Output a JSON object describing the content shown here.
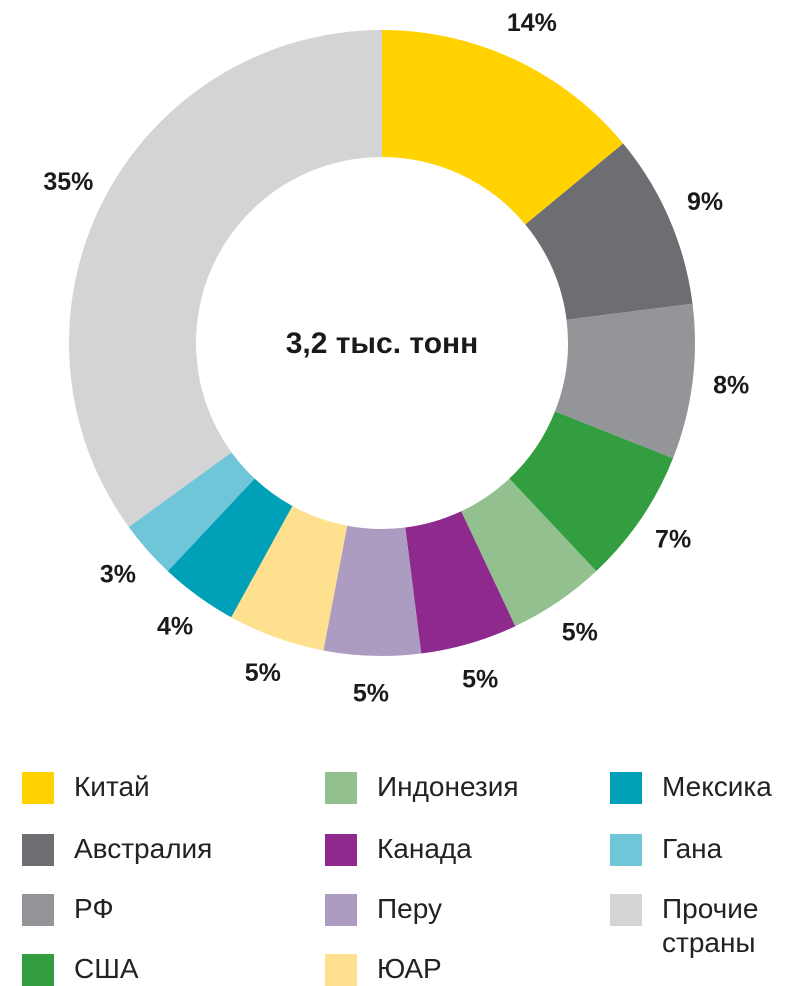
{
  "chart_data": {
    "type": "donut",
    "center_label": "3,2 тыс. тонн",
    "categories": [
      "Китай",
      "Австралия",
      "РФ",
      "США",
      "Индонезия",
      "Канада",
      "Перу",
      "ЮАР",
      "Мексика",
      "Гана",
      "Прочие страны"
    ],
    "values": [
      14,
      9,
      8,
      7,
      5,
      5,
      5,
      5,
      4,
      3,
      35
    ],
    "value_labels": [
      "14%",
      "9%",
      "8%",
      "7%",
      "5%",
      "5%",
      "5%",
      "5%",
      "4%",
      "3%",
      "35%"
    ],
    "colors": [
      "#ffd200",
      "#6d6e71",
      "#939598",
      "#339e3f",
      "#92c18f",
      "#8e2a8e",
      "#ad9cc2",
      "#ffe08e",
      "#00a0b8",
      "#6ec6d8",
      "#d4d4d6"
    ]
  }
}
